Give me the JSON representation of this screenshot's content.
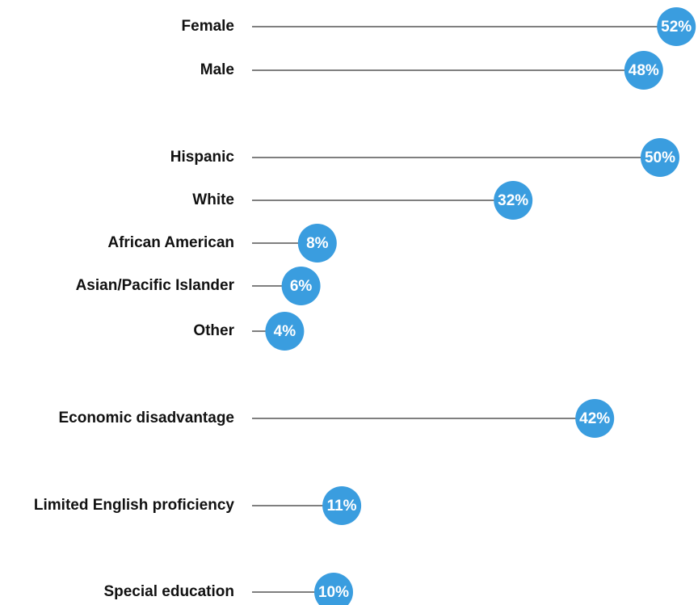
{
  "chart_data": {
    "type": "lollipop",
    "categories": [
      "Female",
      "Male",
      "Hispanic",
      "White",
      "African American",
      "Asian/Pacific Islander",
      "Other",
      "Economic disadvantage",
      "Limited English proficiency",
      "Special education"
    ],
    "values": [
      52,
      48,
      50,
      32,
      8,
      6,
      4,
      42,
      11,
      10
    ],
    "value_labels": [
      "52%",
      "48%",
      "50%",
      "32%",
      "8%",
      "6%",
      "4%",
      "42%",
      "11%",
      "10%"
    ],
    "color": "#3a9ddf"
  }
}
